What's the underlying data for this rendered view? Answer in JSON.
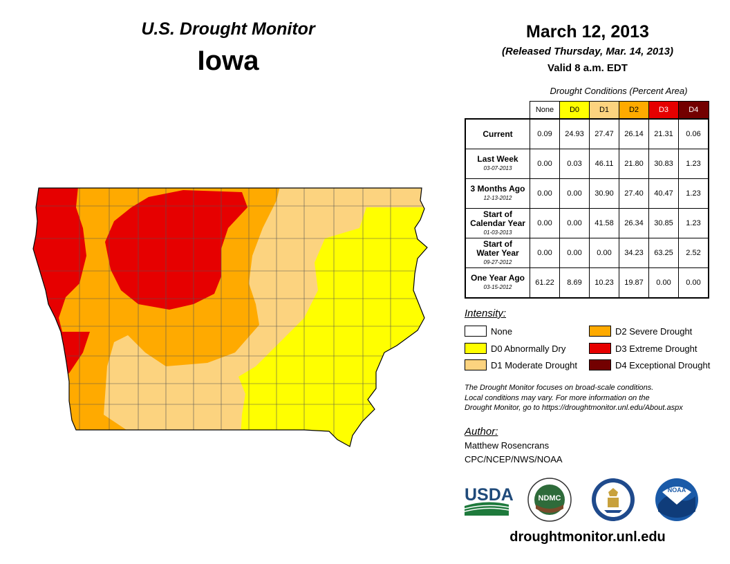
{
  "header": {
    "title_line1": "U.S. Drought Monitor",
    "title_line2": "Iowa",
    "date": "March 12, 2013",
    "released": "(Released Thursday, Mar. 14, 2013)",
    "valid": "Valid 8 a.m. EDT"
  },
  "table": {
    "caption": "Drought Conditions (Percent Area)",
    "columns": [
      {
        "label": "None",
        "color": "#ffffff",
        "text_color": "#000000"
      },
      {
        "label": "D0",
        "color": "#ffff00",
        "text_color": "#000000"
      },
      {
        "label": "D1",
        "color": "#fcd37f",
        "text_color": "#000000"
      },
      {
        "label": "D2",
        "color": "#ffaa00",
        "text_color": "#000000"
      },
      {
        "label": "D3",
        "color": "#e60000",
        "text_color": "#ffffff"
      },
      {
        "label": "D4",
        "color": "#730000",
        "text_color": "#ffffff"
      }
    ],
    "rows": [
      {
        "label": "Current",
        "label2": "",
        "date": "",
        "values": [
          "0.09",
          "24.93",
          "27.47",
          "26.14",
          "21.31",
          "0.06"
        ]
      },
      {
        "label": "Last Week",
        "label2": "",
        "date": "03-07-2013",
        "values": [
          "0.00",
          "0.03",
          "46.11",
          "21.80",
          "30.83",
          "1.23"
        ]
      },
      {
        "label": "3 Months Ago",
        "label2": "",
        "date": "12-13-2012",
        "values": [
          "0.00",
          "0.00",
          "30.90",
          "27.40",
          "40.47",
          "1.23"
        ]
      },
      {
        "label": "Start of",
        "label2": "Calendar Year",
        "date": "01-03-2013",
        "values": [
          "0.00",
          "0.00",
          "41.58",
          "26.34",
          "30.85",
          "1.23"
        ]
      },
      {
        "label": "Start of",
        "label2": "Water Year",
        "date": "09-27-2012",
        "values": [
          "0.00",
          "0.00",
          "0.00",
          "34.23",
          "63.25",
          "2.52"
        ]
      },
      {
        "label": "One Year Ago",
        "label2": "",
        "date": "03-15-2012",
        "values": [
          "61.22",
          "8.69",
          "10.23",
          "19.87",
          "0.00",
          "0.00"
        ]
      }
    ]
  },
  "legend": {
    "title": "Intensity:",
    "items": [
      {
        "label": "None",
        "color": "#ffffff"
      },
      {
        "label": "D0 Abnormally Dry",
        "color": "#ffff00"
      },
      {
        "label": "D1 Moderate Drought",
        "color": "#fcd37f"
      },
      {
        "label": "D2 Severe Drought",
        "color": "#ffaa00"
      },
      {
        "label": "D3 Extreme Drought",
        "color": "#e60000"
      },
      {
        "label": "D4 Exceptional Drought",
        "color": "#730000"
      }
    ]
  },
  "note": {
    "line1": "The Drought Monitor focuses on broad-scale conditions.",
    "line2": "Local conditions may vary. For more information on the",
    "line3": "Drought Monitor, go to https://droughtmonitor.unl.edu/About.aspx"
  },
  "author": {
    "label": "Author:",
    "name": "Matthew Rosencrans",
    "org": "CPC/NCEP/NWS/NOAA"
  },
  "logos": {
    "usda": "USDA",
    "ndmc": "NDMC",
    "noaa": "NOAA"
  },
  "footer": {
    "url": "droughtmonitor.unl.edu"
  }
}
